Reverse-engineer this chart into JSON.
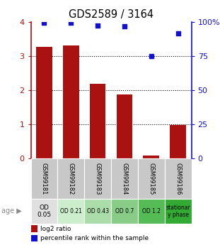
{
  "title": "GDS2589 / 3164",
  "samples": [
    "GSM99181",
    "GSM99182",
    "GSM99183",
    "GSM99184",
    "GSM99185",
    "GSM99186"
  ],
  "log2_ratios": [
    3.27,
    3.32,
    2.18,
    1.87,
    0.07,
    0.97
  ],
  "percentile_ranks": [
    99.5,
    99.5,
    97.5,
    97.0,
    75.0,
    91.5
  ],
  "bar_color": "#aa1111",
  "dot_color": "#1111cc",
  "ylim_left": [
    0,
    4
  ],
  "ylim_right": [
    0,
    100
  ],
  "yticks_left": [
    0,
    1,
    2,
    3,
    4
  ],
  "yticks_right": [
    0,
    25,
    50,
    75,
    100
  ],
  "yticklabels_right": [
    "0",
    "25",
    "50",
    "75",
    "100%"
  ],
  "gridlines_at": [
    1,
    2,
    3
  ],
  "age_labels": [
    "OD\n0.05",
    "OD 0.21",
    "OD 0.43",
    "OD 0.7",
    "OD 1.2",
    "stationar\ny phase"
  ],
  "age_bg_colors": [
    "#e0e0e0",
    "#cceecc",
    "#aaddaa",
    "#88cc88",
    "#55bb55",
    "#33aa33"
  ],
  "sample_bg_color": "#c8c8c8",
  "legend_log2": "log2 ratio",
  "legend_pct": "percentile rank within the sample",
  "bar_width": 0.6
}
